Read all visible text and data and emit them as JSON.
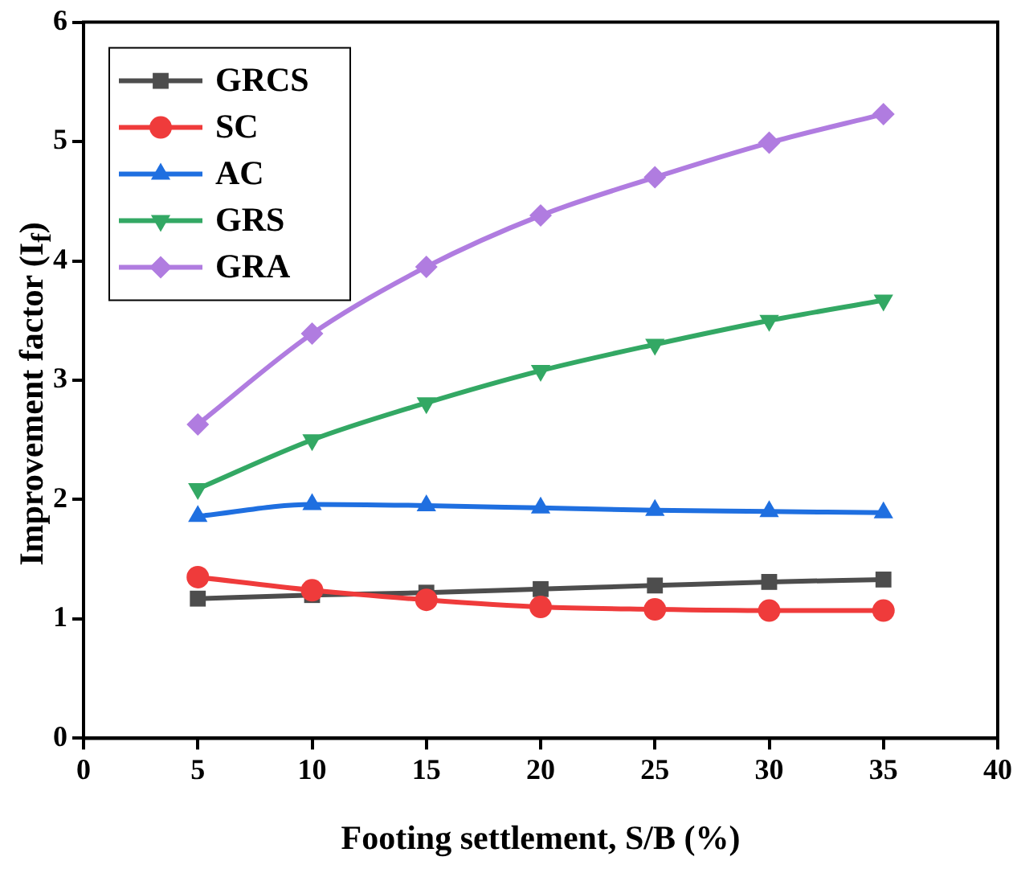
{
  "chart_data": {
    "type": "line",
    "xlabel": "Footing settlement, S/B (%)",
    "ylabel": "Improvement factor (I$_{f}$)",
    "x": [
      5,
      10,
      15,
      20,
      25,
      30,
      35
    ],
    "xlim": [
      0,
      40
    ],
    "xticks": [
      0,
      5,
      10,
      15,
      20,
      25,
      30,
      35,
      40
    ],
    "ylim": [
      0,
      6
    ],
    "yticks": [
      0,
      1,
      2,
      3,
      4,
      5,
      6
    ],
    "grid": false,
    "legend": "top left",
    "series": [
      {
        "name": "GRCS",
        "color": "#4d4d4d",
        "marker": "square",
        "values": [
          1.17,
          1.2,
          1.22,
          1.25,
          1.28,
          1.31,
          1.33
        ]
      },
      {
        "name": "SC",
        "color": "#ef3b3b",
        "marker": "circle",
        "values": [
          1.35,
          1.24,
          1.16,
          1.1,
          1.08,
          1.07,
          1.07
        ]
      },
      {
        "name": "AC",
        "color": "#1f6fe0",
        "marker": "triangle",
        "values": [
          1.86,
          1.96,
          1.95,
          1.93,
          1.91,
          1.9,
          1.89
        ]
      },
      {
        "name": "GRS",
        "color": "#33a864",
        "marker": "triangle-down",
        "values": [
          2.09,
          2.5,
          2.81,
          3.08,
          3.3,
          3.5,
          3.67
        ]
      },
      {
        "name": "GRA",
        "color": "#b07ce0",
        "marker": "diamond",
        "values": [
          2.63,
          3.39,
          3.95,
          4.38,
          4.7,
          4.99,
          5.23
        ]
      }
    ]
  }
}
